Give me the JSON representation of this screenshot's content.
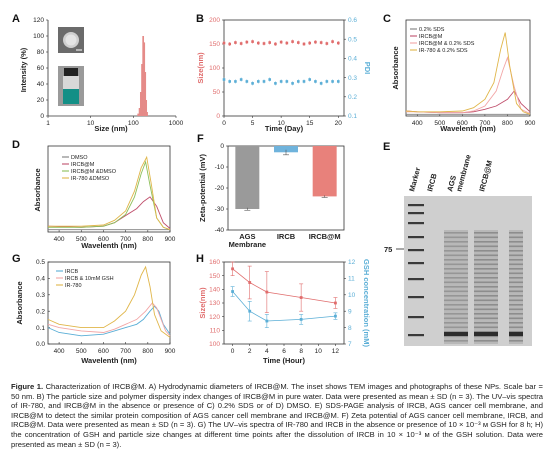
{
  "panels": {
    "A": {
      "letter": "A",
      "xlabel": "Size (nm)",
      "ylabel": "Intensity (%)",
      "xticks": [
        "1",
        "10",
        "100",
        "1000"
      ],
      "yticks": [
        "0",
        "20",
        "40",
        "60",
        "80",
        "100",
        "120"
      ],
      "chart_data": {
        "type": "bar",
        "xlabel": "Size (nm)",
        "ylabel": "Intensity (%)",
        "xscale": "log",
        "xlim": [
          1,
          1000
        ],
        "ylim": [
          0,
          120
        ],
        "x": [
          130,
          140,
          150,
          160,
          170,
          180,
          190,
          200,
          210
        ],
        "values": [
          3,
          10,
          30,
          65,
          100,
          92,
          55,
          20,
          5
        ],
        "bar_color": "#e58b88"
      },
      "inset_scale_text": ""
    },
    "B": {
      "letter": "B",
      "xlabel": "Time (Day)",
      "ylabel_left": "Size(nm)",
      "ylabel_right": "PDI",
      "xticks": [
        "0",
        "5",
        "10",
        "15",
        "20"
      ],
      "yticks_left": [
        "0",
        "50",
        "100",
        "150",
        "200"
      ],
      "yticks_right": [
        "0.1",
        "0.2",
        "0.3",
        "0.4",
        "0.5",
        "0.6"
      ],
      "chart_data": {
        "type": "scatter",
        "xlabel": "Time (Day)",
        "xlim": [
          0,
          21
        ],
        "series": [
          {
            "name": "Size",
            "axis": "left",
            "color": "#e06c6c",
            "x": [
              0,
              1,
              2,
              3,
              4,
              5,
              6,
              7,
              8,
              9,
              10,
              11,
              12,
              13,
              14,
              15,
              16,
              17,
              18,
              19,
              20
            ],
            "y": [
              152,
              150,
              153,
              151,
              154,
              155,
              152,
              151,
              153,
              150,
              154,
              152,
              155,
              153,
              150,
              152,
              154,
              153,
              151,
              155,
              152
            ]
          },
          {
            "name": "PDI",
            "axis": "right",
            "color": "#5aaed6",
            "x": [
              0,
              1,
              2,
              3,
              4,
              5,
              6,
              7,
              8,
              9,
              10,
              11,
              12,
              13,
              14,
              15,
              16,
              17,
              18,
              19,
              20
            ],
            "y": [
              0.29,
              0.28,
              0.28,
              0.29,
              0.28,
              0.27,
              0.28,
              0.28,
              0.29,
              0.27,
              0.28,
              0.28,
              0.27,
              0.28,
              0.28,
              0.29,
              0.28,
              0.27,
              0.28,
              0.28,
              0.28
            ]
          }
        ],
        "ylim_left": [
          0,
          200
        ],
        "ylim_right": [
          0.1,
          0.6
        ]
      }
    },
    "C": {
      "letter": "C",
      "xlabel": "Wavelenth (nm)",
      "ylabel": "Absorbance",
      "xticks": [
        "400",
        "500",
        "600",
        "700",
        "800",
        "900"
      ],
      "legend": [
        "0.2% SDS",
        "IRCB@M",
        "IRCB@M & 0.2% SDS",
        "IR-780 & 0.2% SDS"
      ],
      "chart_data": {
        "type": "line",
        "xlabel": "Wavelenth (nm)",
        "ylabel": "Absorbance",
        "xlim": [
          350,
          900
        ],
        "series": [
          {
            "name": "0.2% SDS",
            "color": "#7f7f7f",
            "x": [
              350,
              400,
              500,
              600,
              700,
              750,
              800,
              850,
              900
            ],
            "y": [
              0.02,
              0.02,
              0.02,
              0.02,
              0.02,
              0.02,
              0.02,
              0.02,
              0.02
            ]
          },
          {
            "name": "IRCB@M",
            "color": "#c0506d",
            "x": [
              350,
              400,
              500,
              600,
              650,
              700,
              750,
              800,
              830,
              860,
              900
            ],
            "y": [
              0.06,
              0.05,
              0.04,
              0.04,
              0.05,
              0.08,
              0.12,
              0.2,
              0.3,
              0.15,
              0.05
            ]
          },
          {
            "name": "IRCB@M & 0.2% SDS",
            "color": "#f2a6a6",
            "x": [
              350,
              400,
              500,
              600,
              650,
              700,
              750,
              780,
              800,
              830,
              860,
              900
            ],
            "y": [
              0.05,
              0.05,
              0.04,
              0.04,
              0.06,
              0.12,
              0.3,
              0.55,
              0.7,
              0.35,
              0.08,
              0.03
            ]
          },
          {
            "name": "IR-780 & 0.2% SDS",
            "color": "#e0b64a",
            "x": [
              350,
              400,
              500,
              600,
              650,
              700,
              740,
              770,
              790,
              810,
              840,
              870,
              900
            ],
            "y": [
              0.06,
              0.05,
              0.05,
              0.06,
              0.1,
              0.2,
              0.4,
              0.8,
              1.0,
              0.6,
              0.15,
              0.05,
              0.02
            ]
          }
        ]
      }
    },
    "D": {
      "letter": "D",
      "xlabel": "Wavelenth (nm)",
      "ylabel": "Absorbance",
      "xticks": [
        "400",
        "500",
        "600",
        "700",
        "800",
        "900"
      ],
      "legend": [
        "DMSO",
        "IRCB@M",
        "IRCB@M &DMSO",
        "IR-780 &DMSO"
      ],
      "chart_data": {
        "type": "line",
        "xlabel": "Wavelenth (nm)",
        "ylabel": "Absorbance",
        "xlim": [
          350,
          900
        ],
        "series": [
          {
            "name": "DMSO",
            "color": "#7f7f7f",
            "x": [
              350,
              400,
              500,
              600,
              700,
              800,
              900
            ],
            "y": [
              0.02,
              0.02,
              0.02,
              0.02,
              0.02,
              0.02,
              0.02
            ]
          },
          {
            "name": "IRCB@M",
            "color": "#c0506d",
            "x": [
              350,
              500,
              600,
              650,
              700,
              750,
              780,
              810,
              840,
              870,
              900
            ],
            "y": [
              0.05,
              0.04,
              0.05,
              0.08,
              0.14,
              0.2,
              0.26,
              0.3,
              0.22,
              0.08,
              0.03
            ]
          },
          {
            "name": "IRCB@M &DMSO",
            "color": "#8dbf5a",
            "x": [
              350,
              500,
              600,
              650,
              700,
              740,
              770,
              790,
              810,
              840,
              870,
              900
            ],
            "y": [
              0.04,
              0.04,
              0.05,
              0.08,
              0.15,
              0.3,
              0.5,
              0.6,
              0.4,
              0.12,
              0.04,
              0.02
            ]
          },
          {
            "name": "IR-780 &DMSO",
            "color": "#e0b64a",
            "x": [
              350,
              500,
              600,
              650,
              700,
              740,
              770,
              795,
              815,
              840,
              870,
              900
            ],
            "y": [
              0.05,
              0.05,
              0.06,
              0.1,
              0.18,
              0.35,
              0.55,
              0.64,
              0.42,
              0.12,
              0.04,
              0.02
            ]
          }
        ]
      }
    },
    "E": {
      "letter": "E",
      "lanes": [
        "Marker",
        "IRCB",
        "AGS membrane",
        "IRCB@M"
      ],
      "marker_label": "75"
    },
    "F": {
      "letter": "F",
      "ylabel": "Zeta-potential (mV)",
      "yticks": [
        "0",
        "-10",
        "-20",
        "-30",
        "-40"
      ],
      "chart_data": {
        "type": "bar",
        "ylabel": "Zeta-potential (mV)",
        "ylim": [
          -40,
          0
        ],
        "categories": [
          "AGS Membrane",
          "IRCB",
          "IRCB@M"
        ],
        "values": [
          -30,
          -3,
          -24
        ],
        "errors": [
          0.6,
          1.2,
          0.5
        ],
        "colors": [
          "#9a9a9a",
          "#6fb3dc",
          "#e8817b"
        ]
      },
      "category_labels": [
        "AGS\nMembrane",
        "IRCB",
        "IRCB@M"
      ]
    },
    "G": {
      "letter": "G",
      "xlabel": "Wavelenth (nm)",
      "ylabel": "Absorbance",
      "xticks": [
        "400",
        "500",
        "600",
        "700",
        "800",
        "900"
      ],
      "yticks": [
        "0.0",
        "0.1",
        "0.2",
        "0.3",
        "0.4",
        "0.5"
      ],
      "legend": [
        "IRCB",
        "IRCB & 10mM GSH",
        "IR-780"
      ],
      "chart_data": {
        "type": "line",
        "xlabel": "Wavelenth (nm)",
        "ylabel": "Absorbance",
        "xlim": [
          350,
          900
        ],
        "ylim": [
          0,
          0.5
        ],
        "series": [
          {
            "name": "IRCB",
            "color": "#5aaed6",
            "x": [
              350,
              400,
              500,
              600,
              650,
              700,
              750,
              780,
              810,
              830,
              850,
              870,
              900
            ],
            "y": [
              0.1,
              0.07,
              0.05,
              0.06,
              0.08,
              0.1,
              0.12,
              0.15,
              0.2,
              0.23,
              0.2,
              0.12,
              0.06
            ]
          },
          {
            "name": "IRCB & 10mM GSH",
            "color": "#f2a6a6",
            "x": [
              350,
              400,
              500,
              600,
              650,
              700,
              750,
              790,
              820,
              840,
              860,
              880,
              900
            ],
            "y": [
              0.12,
              0.1,
              0.08,
              0.07,
              0.09,
              0.12,
              0.15,
              0.2,
              0.25,
              0.22,
              0.15,
              0.08,
              0.05
            ]
          },
          {
            "name": "IR-780",
            "color": "#e0b64a",
            "x": [
              350,
              400,
              500,
              600,
              650,
              700,
              740,
              770,
              790,
              810,
              830,
              860,
              900
            ],
            "y": [
              0.15,
              0.12,
              0.1,
              0.1,
              0.14,
              0.2,
              0.3,
              0.42,
              0.47,
              0.35,
              0.18,
              0.08,
              0.04
            ]
          }
        ]
      }
    },
    "H": {
      "letter": "H",
      "xlabel": "Time (Hour)",
      "ylabel_left": "Size(nm)",
      "ylabel_right": "GSH concentration (mM)",
      "xticks": [
        "0",
        "2",
        "4",
        "6",
        "8",
        "10",
        "12"
      ],
      "yticks_left": [
        "100",
        "110",
        "120",
        "130",
        "140",
        "150",
        "160"
      ],
      "yticks_right": [
        "7",
        "8",
        "9",
        "10",
        "11",
        "12"
      ],
      "chart_data": {
        "type": "line",
        "xlabel": "Time (Hour)",
        "xlim": [
          -1,
          13
        ],
        "ylim_left": [
          100,
          160
        ],
        "ylim_right": [
          7,
          12
        ],
        "series": [
          {
            "name": "Size",
            "axis": "left",
            "color": "#e06c6c",
            "x": [
              0,
              2,
              4,
              8,
              12
            ],
            "y": [
              155,
              145,
              138,
              134,
              130
            ],
            "err": [
              5,
              12,
              15,
              10,
              4
            ]
          },
          {
            "name": "GSH concentration",
            "axis": "right",
            "color": "#5aaed6",
            "x": [
              0,
              2,
              4,
              8,
              12
            ],
            "y": [
              10.2,
              9.0,
              8.4,
              8.5,
              8.7
            ],
            "err": [
              0.3,
              0.6,
              0.4,
              0.3,
              0.2
            ]
          }
        ]
      }
    }
  },
  "caption": {
    "label": "Figure 1.",
    "text": "Characterization of IRCB@M. A) Hydrodynamic diameters of IRCB@M. The inset shows TEM images and photographs of these NPs. Scale bar = 50 nm. B) The particle size and polymer dispersity index changes of IRCB@M in pure water. Data were presented as mean ± SD (n = 3). The UV–vis spectra of IR-780, and IRCB@M in the absence or presence of C) 0.2% SDS or of D) DMSO. E) SDS-PAGE analysis of IRCB, AGS cancer cell membrane, and IRCB@M to detect the similar protein composition of AGS cancer cell membrane and IRCB@M. F) Zeta potential of AGS cancer cell membrane, IRCB, and IRCB@M. Data were presented as mean ± SD (n = 3). G) The UV–vis spectra of IR-780 and IRCB in the absence or presence of 10 × 10⁻³ м GSH for 8 h; H) the concentration of GSH and particle size changes at different time points after the dissolution of IRCB in 10 × 10⁻³ м of the GSH solution. Data were presented as mean ± SD (n = 3)."
  }
}
